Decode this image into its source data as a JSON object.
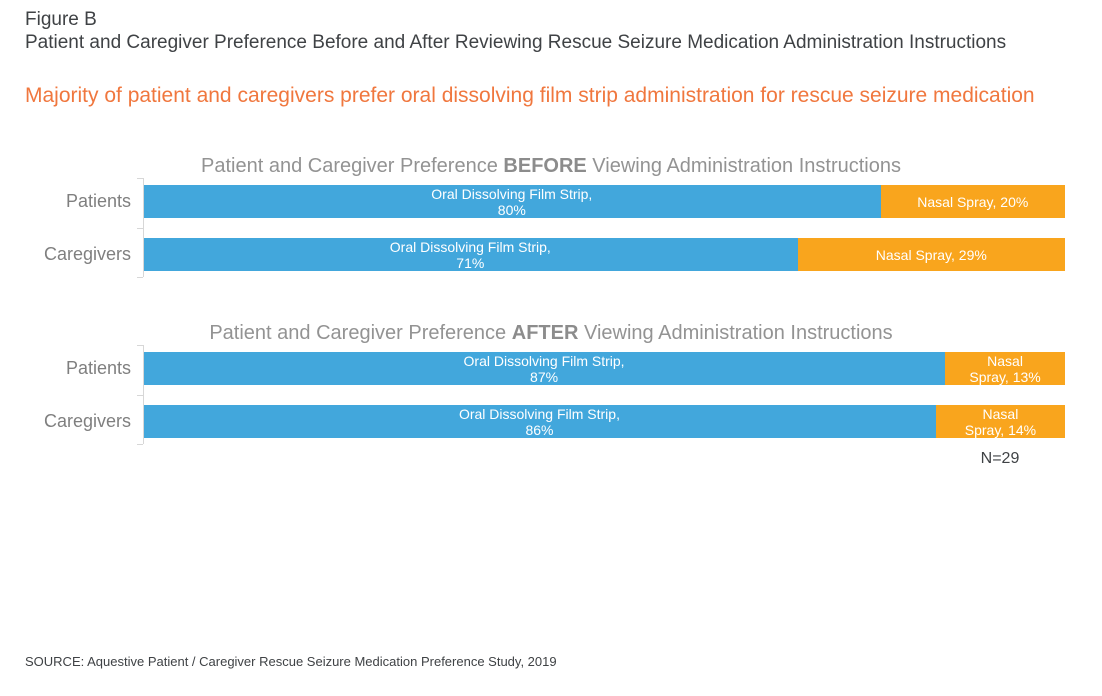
{
  "header": {
    "figure_label": "Figure B",
    "figure_title": "Patient and Caregiver Preference Before and After Reviewing Rescue Seizure Medication Administration Instructions",
    "headline": "Majority of patient and caregivers prefer oral dissolving film strip administration for rescue seizure medication"
  },
  "colors": {
    "film_strip_blue": "#42A7DC",
    "nasal_spray_orange": "#F9A51D",
    "headline_orange": "#F0773E",
    "title_gray": "#939393",
    "text_dark": "#3F4245",
    "category_label_gray": "#7F7F7F",
    "axis_gray": "#D7D7D7"
  },
  "chart_data": [
    {
      "type": "bar",
      "orientation": "horizontal",
      "stacked": true,
      "xlim": [
        0,
        100
      ],
      "grid": false,
      "legend": "none",
      "title": {
        "prefix": "Patient and Caregiver Preference ",
        "emphasis": "BEFORE",
        "suffix": " Viewing Administration Instructions"
      },
      "categories": [
        "Patients",
        "Caregivers"
      ],
      "series": [
        {
          "name": "Oral Dissolving Film Strip",
          "color_key": "film_strip_blue",
          "values": [
            80,
            71
          ]
        },
        {
          "name": "Nasal Spray",
          "color_key": "nasal_spray_orange",
          "values": [
            20,
            29
          ]
        }
      ],
      "segment_label_lines": [
        [
          [
            "Oral Dissolving Film Strip,",
            "80%"
          ],
          [
            "Nasal Spray, 20%"
          ]
        ],
        [
          [
            "Oral Dissolving Film Strip,",
            "71%"
          ],
          [
            "Nasal Spray, 29%"
          ]
        ]
      ]
    },
    {
      "type": "bar",
      "orientation": "horizontal",
      "stacked": true,
      "xlim": [
        0,
        100
      ],
      "grid": false,
      "legend": "none",
      "title": {
        "prefix": "Patient and Caregiver Preference ",
        "emphasis": "AFTER",
        "suffix": " Viewing Administration Instructions"
      },
      "categories": [
        "Patients",
        "Caregivers"
      ],
      "series": [
        {
          "name": "Oral Dissolving Film Strip",
          "color_key": "film_strip_blue",
          "values": [
            87,
            86
          ]
        },
        {
          "name": "Nasal Spray",
          "color_key": "nasal_spray_orange",
          "values": [
            13,
            14
          ]
        }
      ],
      "segment_label_lines": [
        [
          [
            "Oral Dissolving Film Strip,",
            "87%"
          ],
          [
            "Nasal",
            "Spray, 13%"
          ]
        ],
        [
          [
            "Oral Dissolving Film Strip,",
            "86%"
          ],
          [
            "Nasal",
            "Spray, 14%"
          ]
        ]
      ]
    }
  ],
  "annotation": "N=29",
  "source": "SOURCE: Aquestive Patient / Caregiver Rescue Seizure Medication Preference Study, 2019"
}
